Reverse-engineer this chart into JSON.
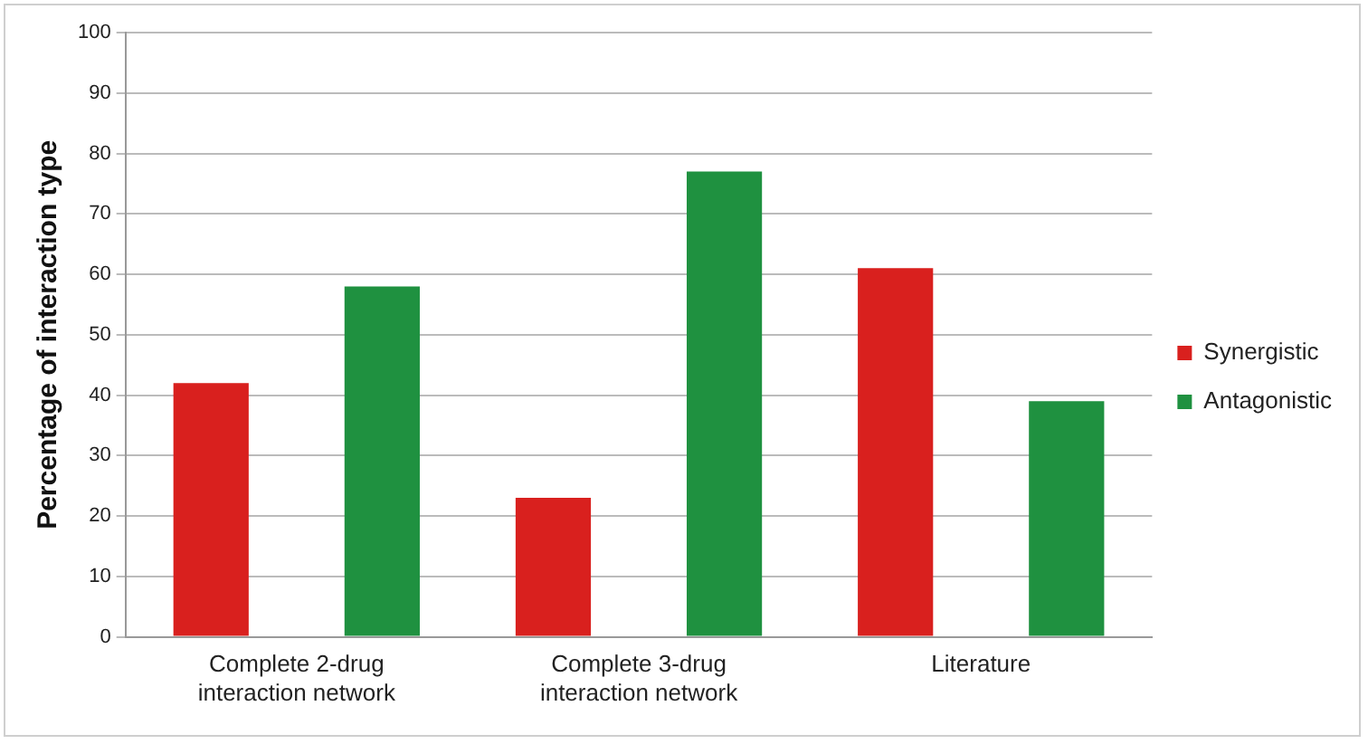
{
  "chart_data": {
    "type": "bar",
    "ylabel": "Percentage of interaction type",
    "categories": [
      "Complete 2-drug interaction network",
      "Complete 3-drug interaction network",
      "Literature"
    ],
    "series": [
      {
        "name": "Synergistic",
        "color": "#d9201e",
        "values": [
          42,
          23,
          61
        ]
      },
      {
        "name": "Antagonistic",
        "color": "#1f9140",
        "values": [
          58,
          77,
          39
        ]
      }
    ],
    "ylim": [
      0,
      100
    ],
    "yticks": [
      0,
      10,
      20,
      30,
      40,
      50,
      60,
      70,
      80,
      90,
      100
    ],
    "grid": "y",
    "legend": "right"
  }
}
